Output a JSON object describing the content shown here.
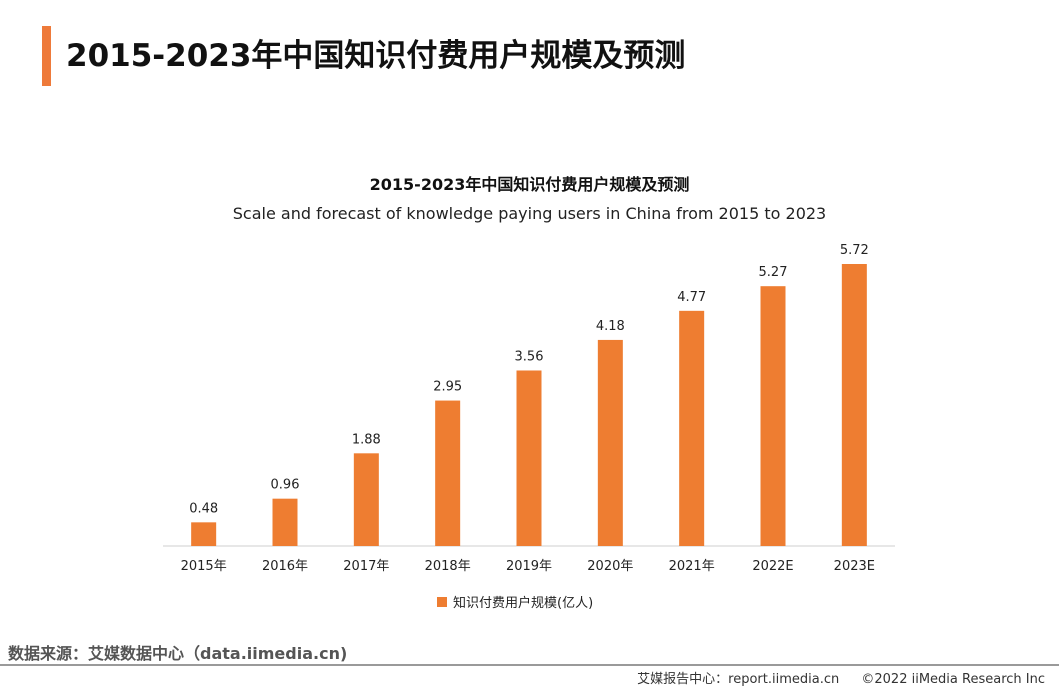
{
  "page": {
    "title": "2015-2023年中国知识付费用户规模及预测",
    "accent_color": "#ee7a3a"
  },
  "chart_data": {
    "type": "bar",
    "title": "2015-2023年中国知识付费用户规模及预测",
    "subtitle": "Scale and forecast of knowledge paying users in China from 2015 to 2023",
    "categories": [
      "2015年",
      "2016年",
      "2017年",
      "2018年",
      "2019年",
      "2020年",
      "2021年",
      "2022E",
      "2023E"
    ],
    "series": [
      {
        "name": "知识付费用户规模(亿人)",
        "values": [
          0.48,
          0.96,
          1.88,
          2.95,
          3.56,
          4.18,
          4.77,
          5.27,
          5.72
        ],
        "color": "#ee7d31"
      }
    ],
    "ylim": [
      0,
      5.72
    ],
    "grid": false,
    "legend_position": "bottom",
    "value_labels": [
      "0.48",
      "0.96",
      "1.88",
      "2.95",
      "3.56",
      "4.18",
      "4.77",
      "5.27",
      "5.72"
    ]
  },
  "source": "数据来源：艾媒数据中心（data.iimedia.cn)",
  "footer": {
    "report": "艾媒报告中心：report.iimedia.cn",
    "copyright": "©2022  iiMedia Research  Inc"
  }
}
